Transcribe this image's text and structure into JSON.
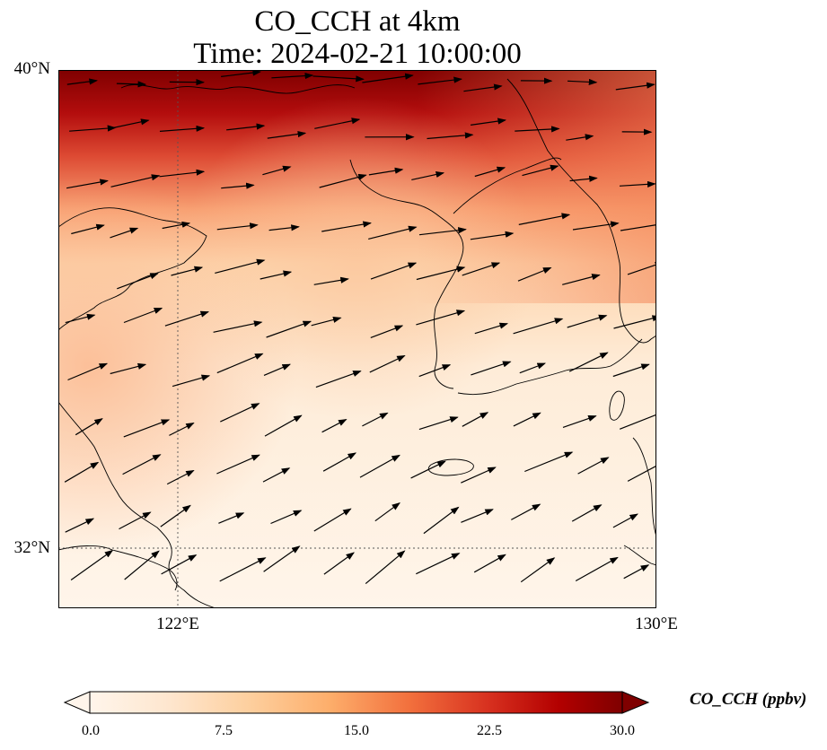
{
  "title": {
    "line1": "CO_CCH at 4km",
    "line2": "Time: 2024-02-21 10:00:00"
  },
  "axes": {
    "lat_labels": [
      {
        "label": "40°N",
        "value": 40
      },
      {
        "label": "32°N",
        "value": 32
      }
    ],
    "lon_labels": [
      {
        "label": "122°E",
        "value": 122
      },
      {
        "label": "130°E",
        "value": 130
      }
    ],
    "lon_range": [
      120,
      130
    ],
    "lat_range": [
      31,
      40
    ],
    "gridlines": "dotted at 122°E and 32°N"
  },
  "colorbar": {
    "label": "CO_CCH (ppbv)",
    "ticks": [
      "0.0",
      "7.5",
      "15.0",
      "22.5",
      "30.0"
    ],
    "range": [
      0,
      30
    ],
    "extend": "both",
    "colors": [
      "#fff5eb",
      "#fee6ce",
      "#fdd0a2",
      "#fdae6b",
      "#fd8d3c",
      "#f16913",
      "#d94801",
      "#a50f15",
      "#7f0000"
    ]
  },
  "field_colors": {
    "high": "#7f0000",
    "mid": "#e34a33",
    "low": "#fdd49e",
    "background": "#fff3e2",
    "coast": "#000000",
    "wind_vector": "#000000"
  }
}
